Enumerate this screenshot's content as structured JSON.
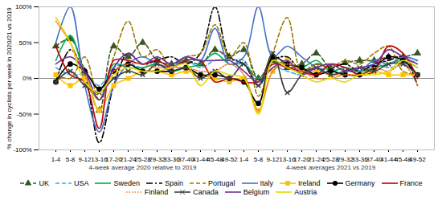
{
  "chart_data": {
    "type": "line",
    "ylabel": "% change in cyclists per week in 2020/21 vs 2019",
    "annotations": [
      "4-week average 2020 relative to 2019",
      "4-week averages 2021 vs 2019"
    ],
    "categories": [
      "1-4",
      "5-8",
      "9-12",
      "13-16",
      "17-20",
      "21-24",
      "25-28",
      "29-32",
      "33-36",
      "37-40",
      "41-44",
      "45-48",
      "49-52",
      "1-4",
      "5-8",
      "9-12",
      "13-16",
      "17-20",
      "21-24",
      "25-28",
      "29-32",
      "33-36",
      "37-40",
      "41-44",
      "45-48",
      "49-52"
    ],
    "ylim": [
      -100,
      100
    ],
    "yticks": [
      {
        "value": -100,
        "label": "-100%"
      },
      {
        "value": -50,
        "label": "-50%"
      },
      {
        "value": 0,
        "label": "0%"
      },
      {
        "value": 50,
        "label": "50%"
      },
      {
        "value": 100,
        "label": "100%"
      }
    ],
    "grid": false,
    "legend": "bottom",
    "series": [
      {
        "name": "UK",
        "color": "#385723",
        "line_style": "dashed",
        "marker": "triangle",
        "values": [
          45,
          55,
          10,
          -45,
          45,
          30,
          50,
          25,
          20,
          25,
          20,
          40,
          30,
          40,
          0,
          25,
          15,
          20,
          35,
          15,
          22,
          25,
          25,
          30,
          30,
          35
        ]
      },
      {
        "name": "USA",
        "color": "#3fa9f5",
        "line_style": "dashed",
        "marker": "none",
        "values": [
          15,
          5,
          5,
          -10,
          15,
          20,
          15,
          20,
          15,
          25,
          15,
          25,
          25,
          25,
          -10,
          15,
          10,
          5,
          15,
          10,
          15,
          5,
          20,
          15,
          20,
          25
        ]
      },
      {
        "name": "Sweden",
        "color": "#00b050",
        "line_style": "solid",
        "marker": "none",
        "values": [
          25,
          60,
          5,
          -30,
          20,
          15,
          15,
          20,
          10,
          15,
          20,
          35,
          20,
          20,
          0,
          20,
          20,
          15,
          25,
          10,
          15,
          10,
          15,
          20,
          25,
          15
        ]
      },
      {
        "name": "Spain",
        "color": "#000000",
        "line_style": "dashdot",
        "marker": "none",
        "values": [
          -5,
          40,
          5,
          -90,
          -10,
          35,
          20,
          25,
          30,
          20,
          35,
          100,
          30,
          20,
          -10,
          25,
          30,
          10,
          20,
          15,
          20,
          10,
          20,
          25,
          30,
          -10
        ]
      },
      {
        "name": "Portugal",
        "color": "#9c7a00",
        "line_style": "dashed",
        "marker": "none",
        "values": [
          5,
          0,
          30,
          -30,
          30,
          80,
          30,
          40,
          15,
          30,
          35,
          75,
          30,
          50,
          -25,
          35,
          85,
          10,
          20,
          15,
          25,
          20,
          35,
          45,
          10,
          5
        ]
      },
      {
        "name": "Italy",
        "color": "#4472c4",
        "line_style": "solid",
        "marker": "none",
        "values": [
          50,
          100,
          -10,
          -75,
          -10,
          20,
          30,
          20,
          15,
          30,
          25,
          70,
          20,
          30,
          100,
          30,
          45,
          30,
          15,
          5,
          10,
          10,
          25,
          20,
          30,
          25
        ]
      },
      {
        "name": "Ireland",
        "color": "#ffc000",
        "line_style": "solid",
        "marker": "square",
        "values": [
          5,
          -10,
          0,
          -45,
          -10,
          0,
          10,
          10,
          5,
          10,
          5,
          0,
          -5,
          0,
          -45,
          10,
          25,
          10,
          10,
          5,
          5,
          5,
          10,
          5,
          5,
          5
        ]
      },
      {
        "name": "Germany",
        "color": "#000000",
        "line_style": "solid",
        "marker": "circle",
        "values": [
          -5,
          20,
          10,
          -15,
          10,
          20,
          10,
          10,
          10,
          15,
          5,
          5,
          0,
          -5,
          -35,
          30,
          20,
          15,
          5,
          10,
          5,
          5,
          15,
          30,
          25,
          5
        ]
      },
      {
        "name": "France",
        "color": "#c00000",
        "line_style": "solid",
        "marker": "none",
        "values": [
          45,
          5,
          -5,
          -70,
          25,
          25,
          20,
          25,
          15,
          25,
          25,
          -5,
          0,
          -5,
          -5,
          20,
          15,
          10,
          5,
          20,
          15,
          5,
          10,
          45,
          35,
          0
        ]
      },
      {
        "name": "Finland",
        "color": "#ed7d31",
        "line_style": "dotted",
        "marker": "none",
        "values": [
          80,
          50,
          5,
          -30,
          10,
          20,
          20,
          15,
          15,
          15,
          10,
          10,
          20,
          5,
          -45,
          10,
          20,
          10,
          0,
          0,
          5,
          5,
          15,
          10,
          20,
          -10
        ]
      },
      {
        "name": "Canada",
        "color": "#404040",
        "line_style": "solid",
        "marker": "x",
        "values": [
          -5,
          10,
          -10,
          -20,
          0,
          10,
          5,
          20,
          10,
          15,
          0,
          10,
          0,
          20,
          -10,
          35,
          -20,
          5,
          15,
          5,
          10,
          15,
          10,
          20,
          20,
          5
        ]
      },
      {
        "name": "Belgium",
        "color": "#7030a0",
        "line_style": "solid",
        "marker": "none",
        "values": [
          20,
          30,
          10,
          -30,
          15,
          35,
          20,
          30,
          20,
          30,
          25,
          25,
          25,
          10,
          -5,
          15,
          25,
          5,
          15,
          20,
          10,
          15,
          20,
          40,
          30,
          20
        ]
      },
      {
        "name": "Austria",
        "color": "#e6d800",
        "line_style": "solid",
        "marker": "none",
        "values": [
          85,
          50,
          -5,
          -20,
          5,
          15,
          10,
          10,
          15,
          20,
          -10,
          10,
          5,
          0,
          -50,
          25,
          15,
          5,
          -5,
          0,
          -5,
          5,
          5,
          10,
          25,
          15
        ]
      }
    ]
  }
}
